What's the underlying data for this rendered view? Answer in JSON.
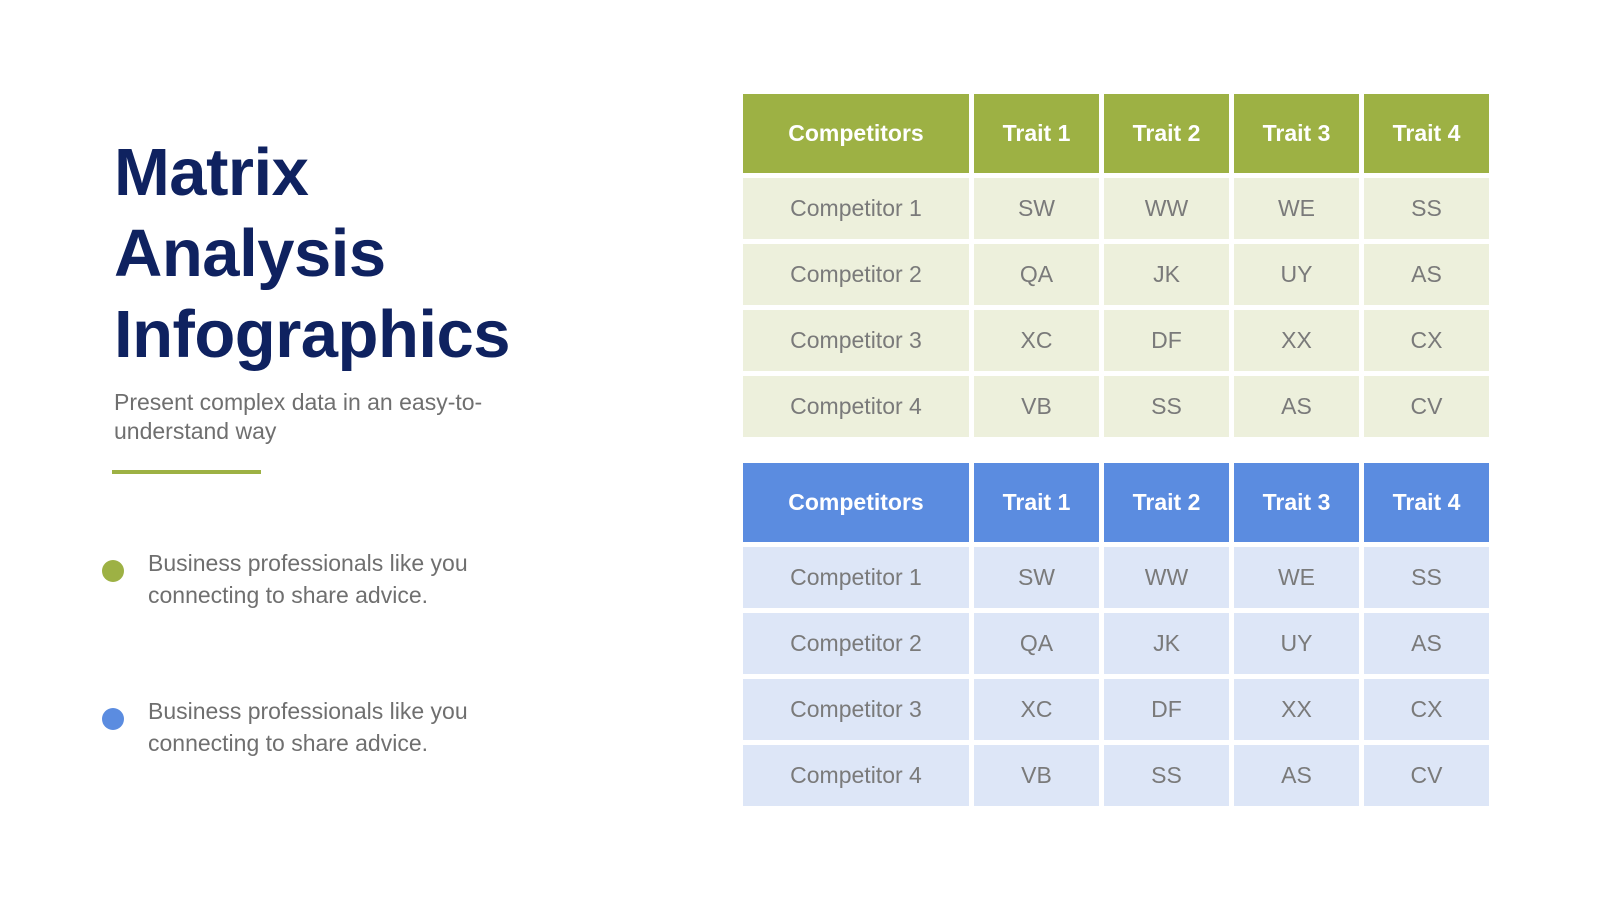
{
  "title_lines": [
    "Matrix",
    "Analysis",
    "Infographics"
  ],
  "subtitle": "Present complex data in an easy-to-understand way",
  "colors": {
    "green": "#9db144",
    "blue": "#5b8ce0",
    "navy": "#0f2260",
    "light_green": "#edf0dc",
    "light_blue": "#dde6f7"
  },
  "bullets": [
    {
      "text": "Business professionals like you connecting to share advice.",
      "color": "#9db144"
    },
    {
      "text": "Business professionals like you connecting to share advice.",
      "color": "#5b8ce0"
    }
  ],
  "tables": [
    {
      "headers": [
        "Competitors",
        "Trait 1",
        "Trait 2",
        "Trait 3",
        "Trait 4"
      ],
      "rows": [
        [
          "Competitor 1",
          "SW",
          "WW",
          "WE",
          "SS"
        ],
        [
          "Competitor 2",
          "QA",
          "JK",
          "UY",
          "AS"
        ],
        [
          "Competitor 3",
          "XC",
          "DF",
          "XX",
          "CX"
        ],
        [
          "Competitor 4",
          "VB",
          "SS",
          "AS",
          "CV"
        ]
      ]
    },
    {
      "headers": [
        "Competitors",
        "Trait 1",
        "Trait 2",
        "Trait 3",
        "Trait 4"
      ],
      "rows": [
        [
          "Competitor 1",
          "SW",
          "WW",
          "WE",
          "SS"
        ],
        [
          "Competitor 2",
          "QA",
          "JK",
          "UY",
          "AS"
        ],
        [
          "Competitor 3",
          "XC",
          "DF",
          "XX",
          "CX"
        ],
        [
          "Competitor 4",
          "VB",
          "SS",
          "AS",
          "CV"
        ]
      ]
    }
  ]
}
